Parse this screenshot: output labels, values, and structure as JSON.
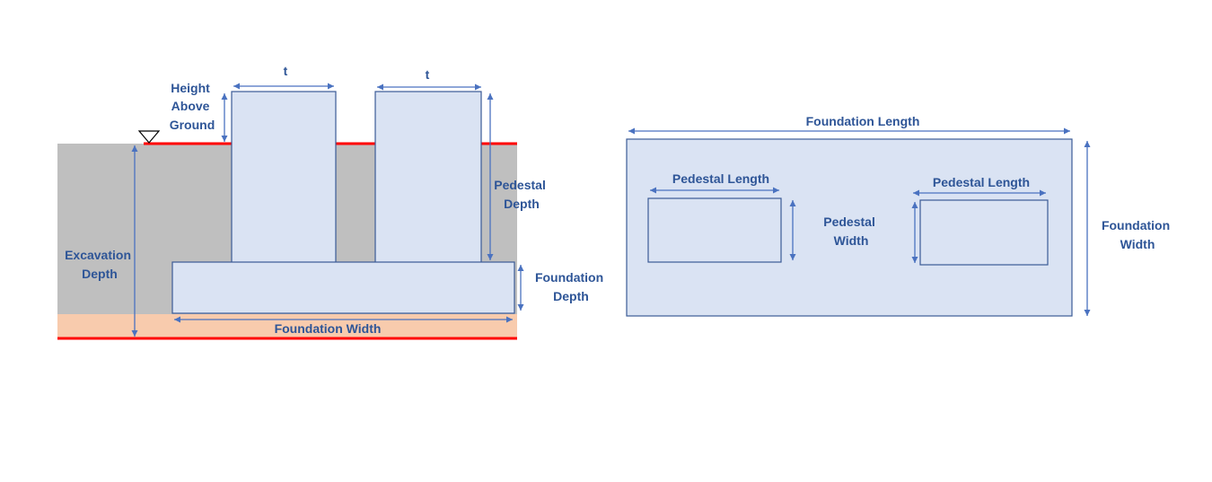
{
  "section": {
    "pedestal_width_label_left": "t",
    "pedestal_width_label_right": "t",
    "height_above_ground": [
      "Height",
      "Above",
      "Ground"
    ],
    "pedestal_depth": [
      "Pedestal",
      "Depth"
    ],
    "excavation_depth": [
      "Excavation",
      "Depth"
    ],
    "foundation_depth": [
      "Foundation",
      "Depth"
    ],
    "foundation_width": "Foundation Width"
  },
  "plan": {
    "foundation_length": "Foundation Length",
    "pedestal_length_left": "Pedestal Length",
    "pedestal_length_right": "Pedestal Length",
    "pedestal_width": [
      "Pedestal",
      "Width"
    ],
    "foundation_width": [
      "Foundation",
      "Width"
    ]
  },
  "colors": {
    "soil": "#bfbfbf",
    "subsoil": "#f8cbad",
    "ground_line": "#ff0000",
    "concrete_fill": "#dae3f3",
    "outline": "#3b5b96",
    "dimension": "#4a72c0",
    "label": "#2e5597"
  }
}
